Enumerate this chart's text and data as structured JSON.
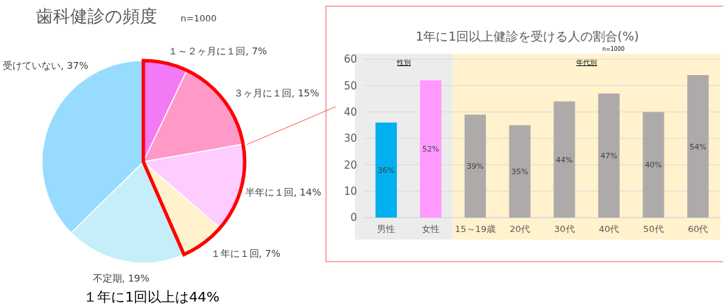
{
  "chart_data": [
    {
      "type": "pie",
      "title": "歯科健診の頻度",
      "subtitle": "n=1000",
      "categories": [
        "１～２ヶ月に１回",
        "３ヶ月に１回",
        "半年に１回",
        "１年に１回",
        "不定期",
        "受けていない"
      ],
      "values": [
        7,
        15,
        14,
        7,
        19,
        37
      ],
      "value_labels": [
        "7%",
        "15%",
        "14%",
        "7%",
        "19%",
        "37%"
      ],
      "colors": [
        "#f27af5",
        "#fe99c8",
        "#ffccff",
        "#fff2cc",
        "#c5eefa",
        "#97dbfe"
      ],
      "annotations": [
        "１年に1回以上は44%"
      ]
    },
    {
      "type": "bar",
      "title": "1年に1回以上健診を受ける人の割合(%)",
      "subtitle": "n=1000",
      "categories": [
        "男性",
        "女性",
        "15～19歳",
        "20代",
        "30代",
        "40代",
        "50代",
        "60代"
      ],
      "values": [
        36,
        52,
        39,
        35,
        44,
        47,
        40,
        54
      ],
      "value_labels": [
        "36%",
        "52%",
        "39%",
        "35%",
        "44%",
        "47%",
        "40%",
        "54%"
      ],
      "colors": [
        "#00b0f0",
        "#ff99ff",
        "#aeaaaa",
        "#aeaaaa",
        "#aeaaaa",
        "#aeaaaa",
        "#aeaaaa",
        "#aeaaaa"
      ],
      "ylim": [
        0,
        60
      ],
      "yticks": [
        0,
        10,
        20,
        30,
        40,
        50,
        60
      ],
      "grid": "y",
      "bands": [
        {
          "axis": "x",
          "from": "男性",
          "to": "女性",
          "label": "性別",
          "color": "#ececec"
        },
        {
          "axis": "x",
          "from": "15～19歳",
          "to": "60代",
          "label": "年代別",
          "color": "#fff2cc"
        }
      ]
    }
  ]
}
